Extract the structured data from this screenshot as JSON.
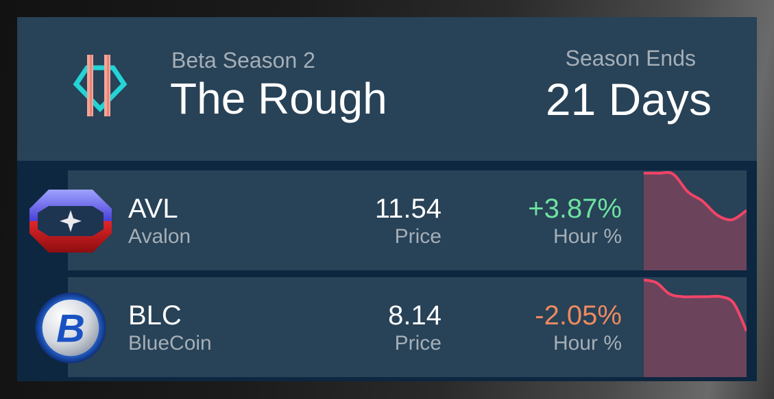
{
  "header": {
    "season_subtitle": "Beta Season 2",
    "season_title": "The Rough",
    "ends_label": "Season Ends",
    "ends_value": "21 Days"
  },
  "coins": [
    {
      "symbol": "AVL",
      "name": "Avalon",
      "price": "11.54",
      "price_label": "Price",
      "change": "+3.87%",
      "change_label": "Hour %",
      "change_color": "#6de3a0",
      "icon": "avalon-logo-icon",
      "sparkline": [
        1.0,
        1.0,
        0.99,
        0.8,
        0.7,
        0.55,
        0.5,
        0.6
      ]
    },
    {
      "symbol": "BLC",
      "name": "BlueCoin",
      "price": "8.14",
      "price_label": "Price",
      "change": "-2.05%",
      "change_label": "Hour %",
      "change_color": "#ee8a60",
      "icon": "bluecoin-logo-icon",
      "sparkline": [
        1.0,
        0.97,
        0.85,
        0.82,
        0.82,
        0.82,
        0.82,
        0.75,
        0.45
      ]
    }
  ],
  "colors": {
    "panel_bg": "#0d2740",
    "card_bg": "#284257",
    "spark_line": "#f24468",
    "spark_fill": "#6b445c"
  }
}
